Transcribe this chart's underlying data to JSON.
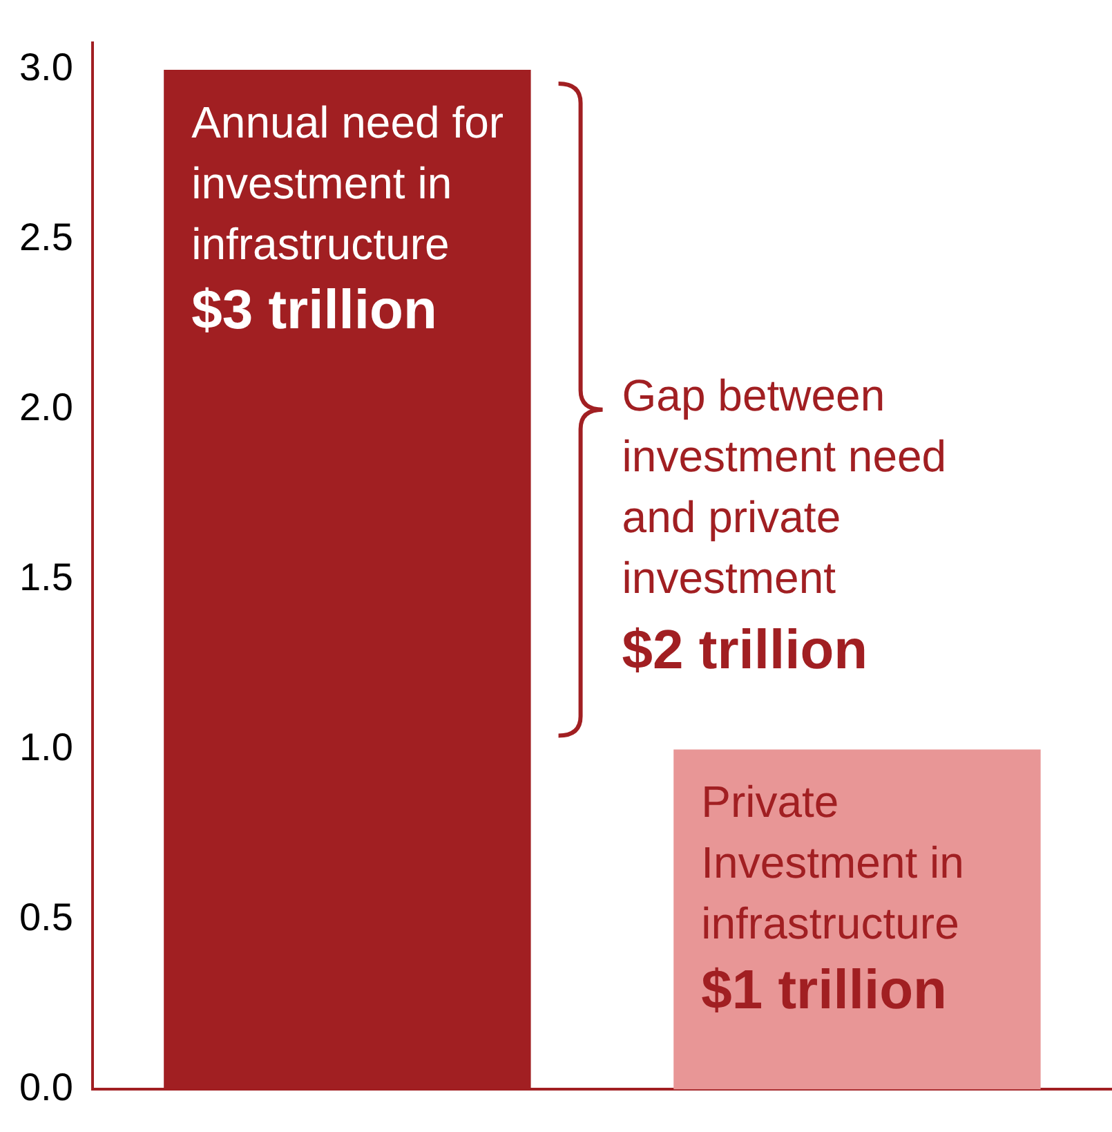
{
  "chart_data": {
    "type": "bar",
    "categories": [
      null,
      null
    ],
    "values": [
      3,
      1
    ],
    "colors": [
      "#a11f22",
      "#e89696"
    ],
    "value_labels": [
      "$3 trillion",
      "$1 trillion"
    ],
    "annotations": [
      {
        "text": "Annual need for investment in infrastructure",
        "y": 3
      },
      {
        "text": "Private Investment in infrastructure",
        "y": 1
      },
      "Gap between investment need and private investment",
      "$2 trillion"
    ],
    "ylim": [
      0,
      3.08
    ],
    "yticks": [
      {
        "value": 0,
        "label": "0.0"
      },
      {
        "value": 0.5,
        "label": "0.5"
      },
      {
        "value": 1,
        "label": "1.0"
      },
      {
        "value": 1.5,
        "label": "1.5"
      },
      {
        "value": 2,
        "label": "2.0"
      },
      {
        "value": 2.5,
        "label": "2.5"
      },
      {
        "value": 3,
        "label": "3.0"
      }
    ],
    "grid": false,
    "legend": false
  }
}
